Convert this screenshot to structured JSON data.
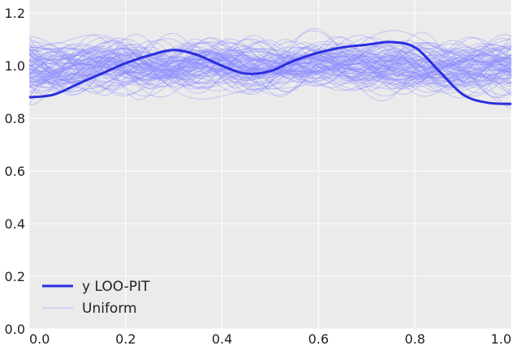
{
  "chart_data": {
    "type": "line",
    "title": "",
    "xlabel": "",
    "ylabel": "",
    "xlim": [
      0.0,
      1.0
    ],
    "ylim": [
      0.0,
      1.25
    ],
    "grid": true,
    "legend_position": "bottom-left",
    "x_ticks": [
      0.0,
      0.2,
      0.4,
      0.6,
      0.8,
      1.0
    ],
    "x_tick_labels": [
      "0.0",
      "0.2",
      "0.4",
      "0.6",
      "0.8",
      "1.0"
    ],
    "y_ticks": [
      0.0,
      0.2,
      0.4,
      0.6,
      0.8,
      1.0,
      1.2
    ],
    "y_tick_labels": [
      "0.0",
      "0.2",
      "0.4",
      "0.6",
      "0.8",
      "1.0",
      "1.2"
    ],
    "series": [
      {
        "name": "y LOO-PIT",
        "x": [
          0.0,
          0.05,
          0.1,
          0.15,
          0.2,
          0.25,
          0.3,
          0.35,
          0.4,
          0.45,
          0.5,
          0.55,
          0.6,
          0.65,
          0.7,
          0.75,
          0.8,
          0.85,
          0.9,
          0.95,
          1.0
        ],
        "values": [
          0.88,
          0.89,
          0.93,
          0.97,
          1.01,
          1.04,
          1.06,
          1.04,
          1.0,
          0.97,
          0.98,
          1.02,
          1.05,
          1.07,
          1.08,
          1.09,
          1.07,
          0.98,
          0.89,
          0.86,
          0.855
        ]
      },
      {
        "name": "Uniform",
        "n_samples": 100,
        "reference_value": 1.0,
        "spread": 0.12
      }
    ],
    "colors": {
      "observed": "#2a2ee0",
      "uniform": "#8c8cff",
      "plot_background": "#ebebeb",
      "grid": "#ffffff"
    }
  }
}
